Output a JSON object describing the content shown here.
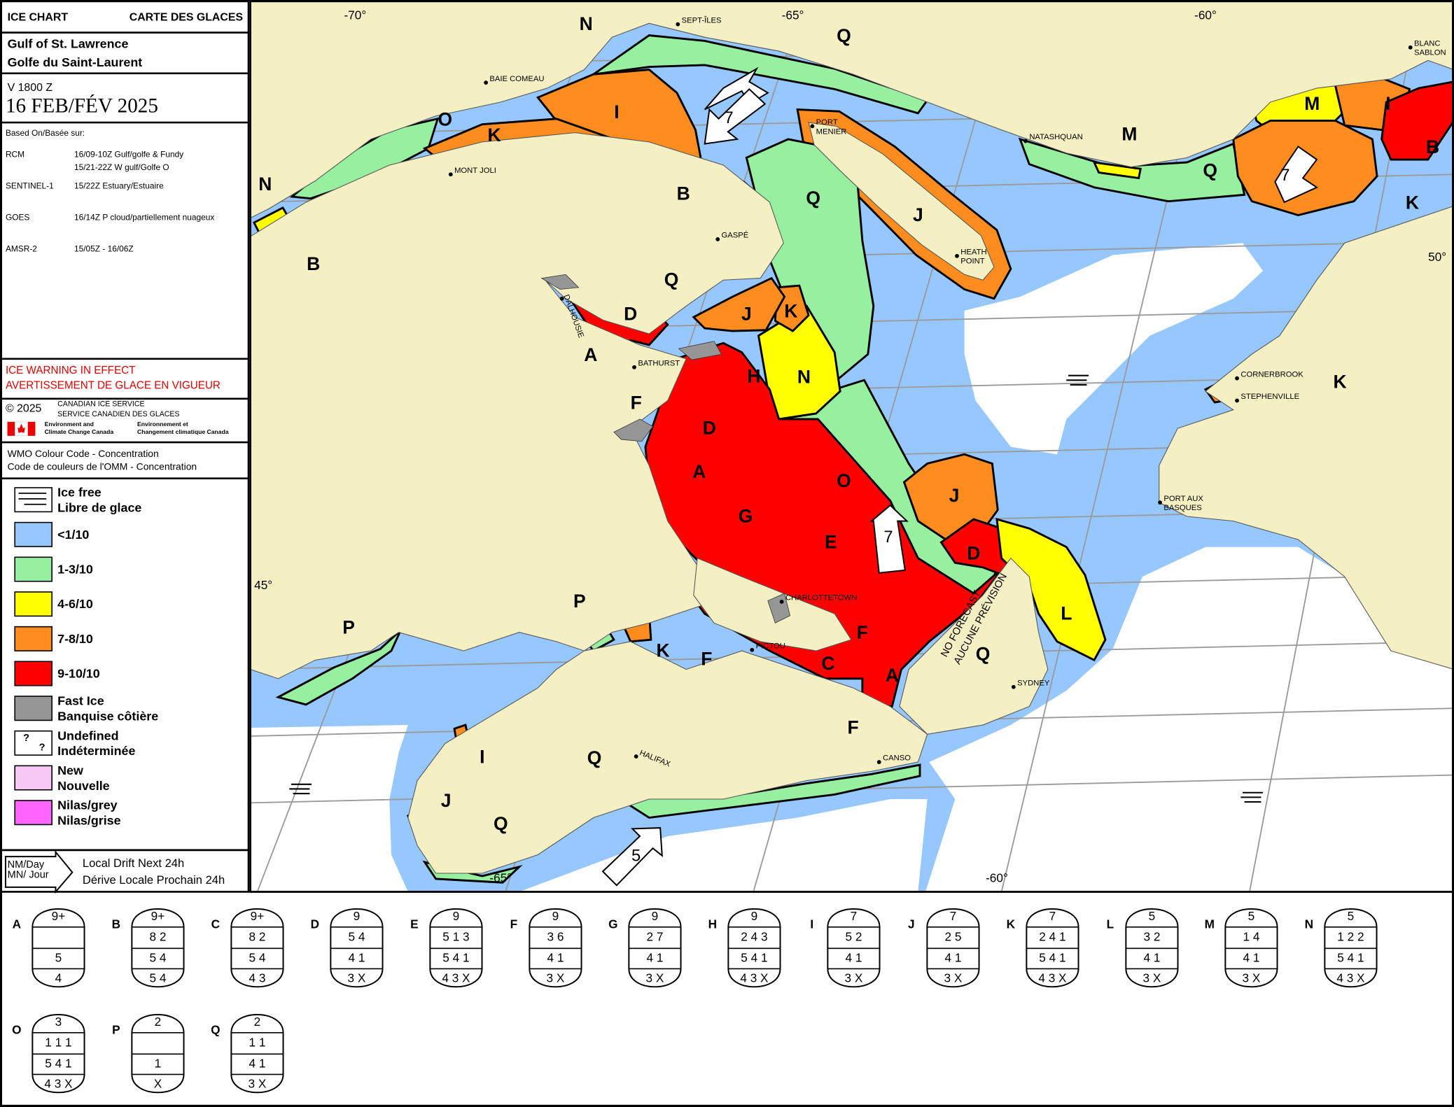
{
  "header": {
    "left": "ICE CHART",
    "right": "CARTE DES GLACES"
  },
  "region": [
    "Gulf of St. Lawrence",
    "Golfe du Saint-Laurent"
  ],
  "valid_time": "V 1800 Z",
  "date": "16 FEB/FÉV 2025",
  "sources": {
    "title": "Based On/Basée sur:",
    "items": [
      {
        "name": "RCM",
        "details": [
          "16/09-10Z Gulf/golfe & Fundy",
          "15/21-22Z W gulf/Golfe O"
        ]
      },
      {
        "name": "SENTINEL-1",
        "details": [
          "15/22Z Estuary/Estuaire"
        ]
      },
      {
        "name": "GOES",
        "details": [
          "16/14Z P cloud/partiellement nuageux"
        ]
      },
      {
        "name": "AMSR-2",
        "details": [
          "15/05Z - 16/06Z"
        ]
      }
    ]
  },
  "warning": [
    "ICE WARNING IN EFFECT",
    "AVERTISSEMENT DE GLACE EN VIGUEUR"
  ],
  "credits": {
    "copyright": "© 2025",
    "agency": [
      "CANADIAN ICE SERVICE",
      "SERVICE CANADIEN DES GLACES"
    ],
    "department_en": [
      "Environment and",
      "Climate Change Canada"
    ],
    "department_fr": [
      "Environnement et",
      "Changement climatique Canada"
    ]
  },
  "colour_code": [
    "WMO Colour Code - Concentration",
    "Code de couleurs de l'OMM - Concentration"
  ],
  "legend": [
    {
      "label": [
        "Ice free",
        "Libre de glace"
      ]
    },
    {
      "label": [
        "<1/10"
      ],
      "color": "#96c8ff"
    },
    {
      "label": [
        "1-3/10"
      ],
      "color": "#96f0a0"
    },
    {
      "label": [
        "4-6/10"
      ],
      "color": "#ffff00"
    },
    {
      "label": [
        "7-8/10"
      ],
      "color": "#ff8c1e"
    },
    {
      "label": [
        "9-10/10"
      ],
      "color": "#ff0000"
    },
    {
      "label": [
        "Fast Ice",
        "Banquise côtière"
      ],
      "color": "#969696"
    },
    {
      "label": [
        "Undefined",
        "Indéterminée"
      ],
      "symbol": [
        "?",
        "?"
      ]
    },
    {
      "label": [
        "New",
        "Nouvelle"
      ],
      "color": "#f5c8f5"
    },
    {
      "label": [
        "Nilas/grey",
        "Nilas/grise"
      ],
      "color": "#ff64ff"
    }
  ],
  "drift_legend": {
    "units": [
      "NM/Day",
      "MN/ Jour"
    ],
    "label": [
      "Local Drift Next 24h",
      "Dérive Locale Prochain 24h"
    ]
  },
  "map": {
    "grid_labels": [
      "-70°",
      "-65°",
      "-60°",
      "50°",
      "45°",
      "-65°",
      "-60°"
    ],
    "places": [
      [
        "SEPT-ÎLES"
      ],
      [
        "BAIE COMEAU"
      ],
      [
        "MONT JOLI"
      ],
      [
        "PORT",
        "MENIER"
      ],
      [
        "NATASHQUAN"
      ],
      [
        "BLANC",
        "SABLON"
      ],
      [
        "GASPÉ"
      ],
      [
        "HEATH",
        "POINT"
      ],
      [
        "DALHOUSIE"
      ],
      [
        "BATHURST"
      ],
      [
        "CORNERBROOK"
      ],
      [
        "STEPHENVILLE"
      ],
      [
        "PORT AUX",
        "BASQUES"
      ],
      [
        "CHARLOTTETOWN"
      ],
      [
        "PICTOU"
      ],
      [
        "SYDNEY"
      ],
      [
        "CANSO"
      ],
      [
        "HALIFAX"
      ]
    ],
    "no_forecast": [
      "NO FORECAST",
      "AUCUNE PRÉVISION"
    ],
    "ice_labels": [
      "N",
      "Q",
      "I",
      "K",
      "O",
      "N",
      "B",
      "B",
      "Q",
      "J",
      "M",
      "M",
      "I",
      "B",
      "Q",
      "K",
      "K",
      "J",
      "D",
      "Q",
      "A",
      "H",
      "N",
      "F",
      "D",
      "K",
      "O",
      "J",
      "A",
      "G",
      "E",
      "D",
      "L",
      "F",
      "C",
      "A",
      "F",
      "F",
      "P",
      "P",
      "K",
      "Q",
      "I",
      "Q",
      "J",
      "Q"
    ],
    "drift": [
      "7",
      "7",
      "7",
      "5"
    ]
  },
  "egg_codes": [
    {
      "id": "A",
      "rows": [
        "9+",
        null,
        "5",
        "4"
      ]
    },
    {
      "id": "B",
      "rows": [
        "9+",
        "8 2",
        "5 4",
        "5 4"
      ]
    },
    {
      "id": "C",
      "rows": [
        "9+",
        "8 2",
        "5 4",
        "4 3"
      ]
    },
    {
      "id": "D",
      "rows": [
        "9",
        "5 4",
        "4 1",
        "3 X"
      ]
    },
    {
      "id": "E",
      "rows": [
        "9",
        "5 1 3",
        "5 4 1",
        "4 3 X"
      ]
    },
    {
      "id": "F",
      "rows": [
        "9",
        "3 6",
        "4 1",
        "3 X"
      ]
    },
    {
      "id": "G",
      "rows": [
        "9",
        "2 7",
        "4 1",
        "3 X"
      ]
    },
    {
      "id": "H",
      "rows": [
        "9",
        "2 4 3",
        "5 4 1",
        "4 3 X"
      ]
    },
    {
      "id": "I",
      "rows": [
        "7",
        "5 2",
        "4 1",
        "3 X"
      ]
    },
    {
      "id": "J",
      "rows": [
        "7",
        "2 5",
        "4 1",
        "3 X"
      ]
    },
    {
      "id": "K",
      "rows": [
        "7",
        "2 4 1",
        "5 4 1",
        "4 3 X"
      ]
    },
    {
      "id": "L",
      "rows": [
        "5",
        "3 2",
        "4 1",
        "3 X"
      ]
    },
    {
      "id": "M",
      "rows": [
        "5",
        "1 4",
        "4 1",
        "3 X"
      ]
    },
    {
      "id": "N",
      "rows": [
        "5",
        "1 2 2",
        "5 4 1",
        "4 3 X"
      ]
    },
    {
      "id": "O",
      "rows": [
        "3",
        "1 1 1",
        "5 4 1",
        "4 3 X"
      ]
    },
    {
      "id": "P",
      "rows": [
        "2",
        null,
        "1",
        "X"
      ]
    },
    {
      "id": "Q",
      "rows": [
        "2",
        "1 1",
        "4 1",
        "3 X"
      ]
    }
  ]
}
